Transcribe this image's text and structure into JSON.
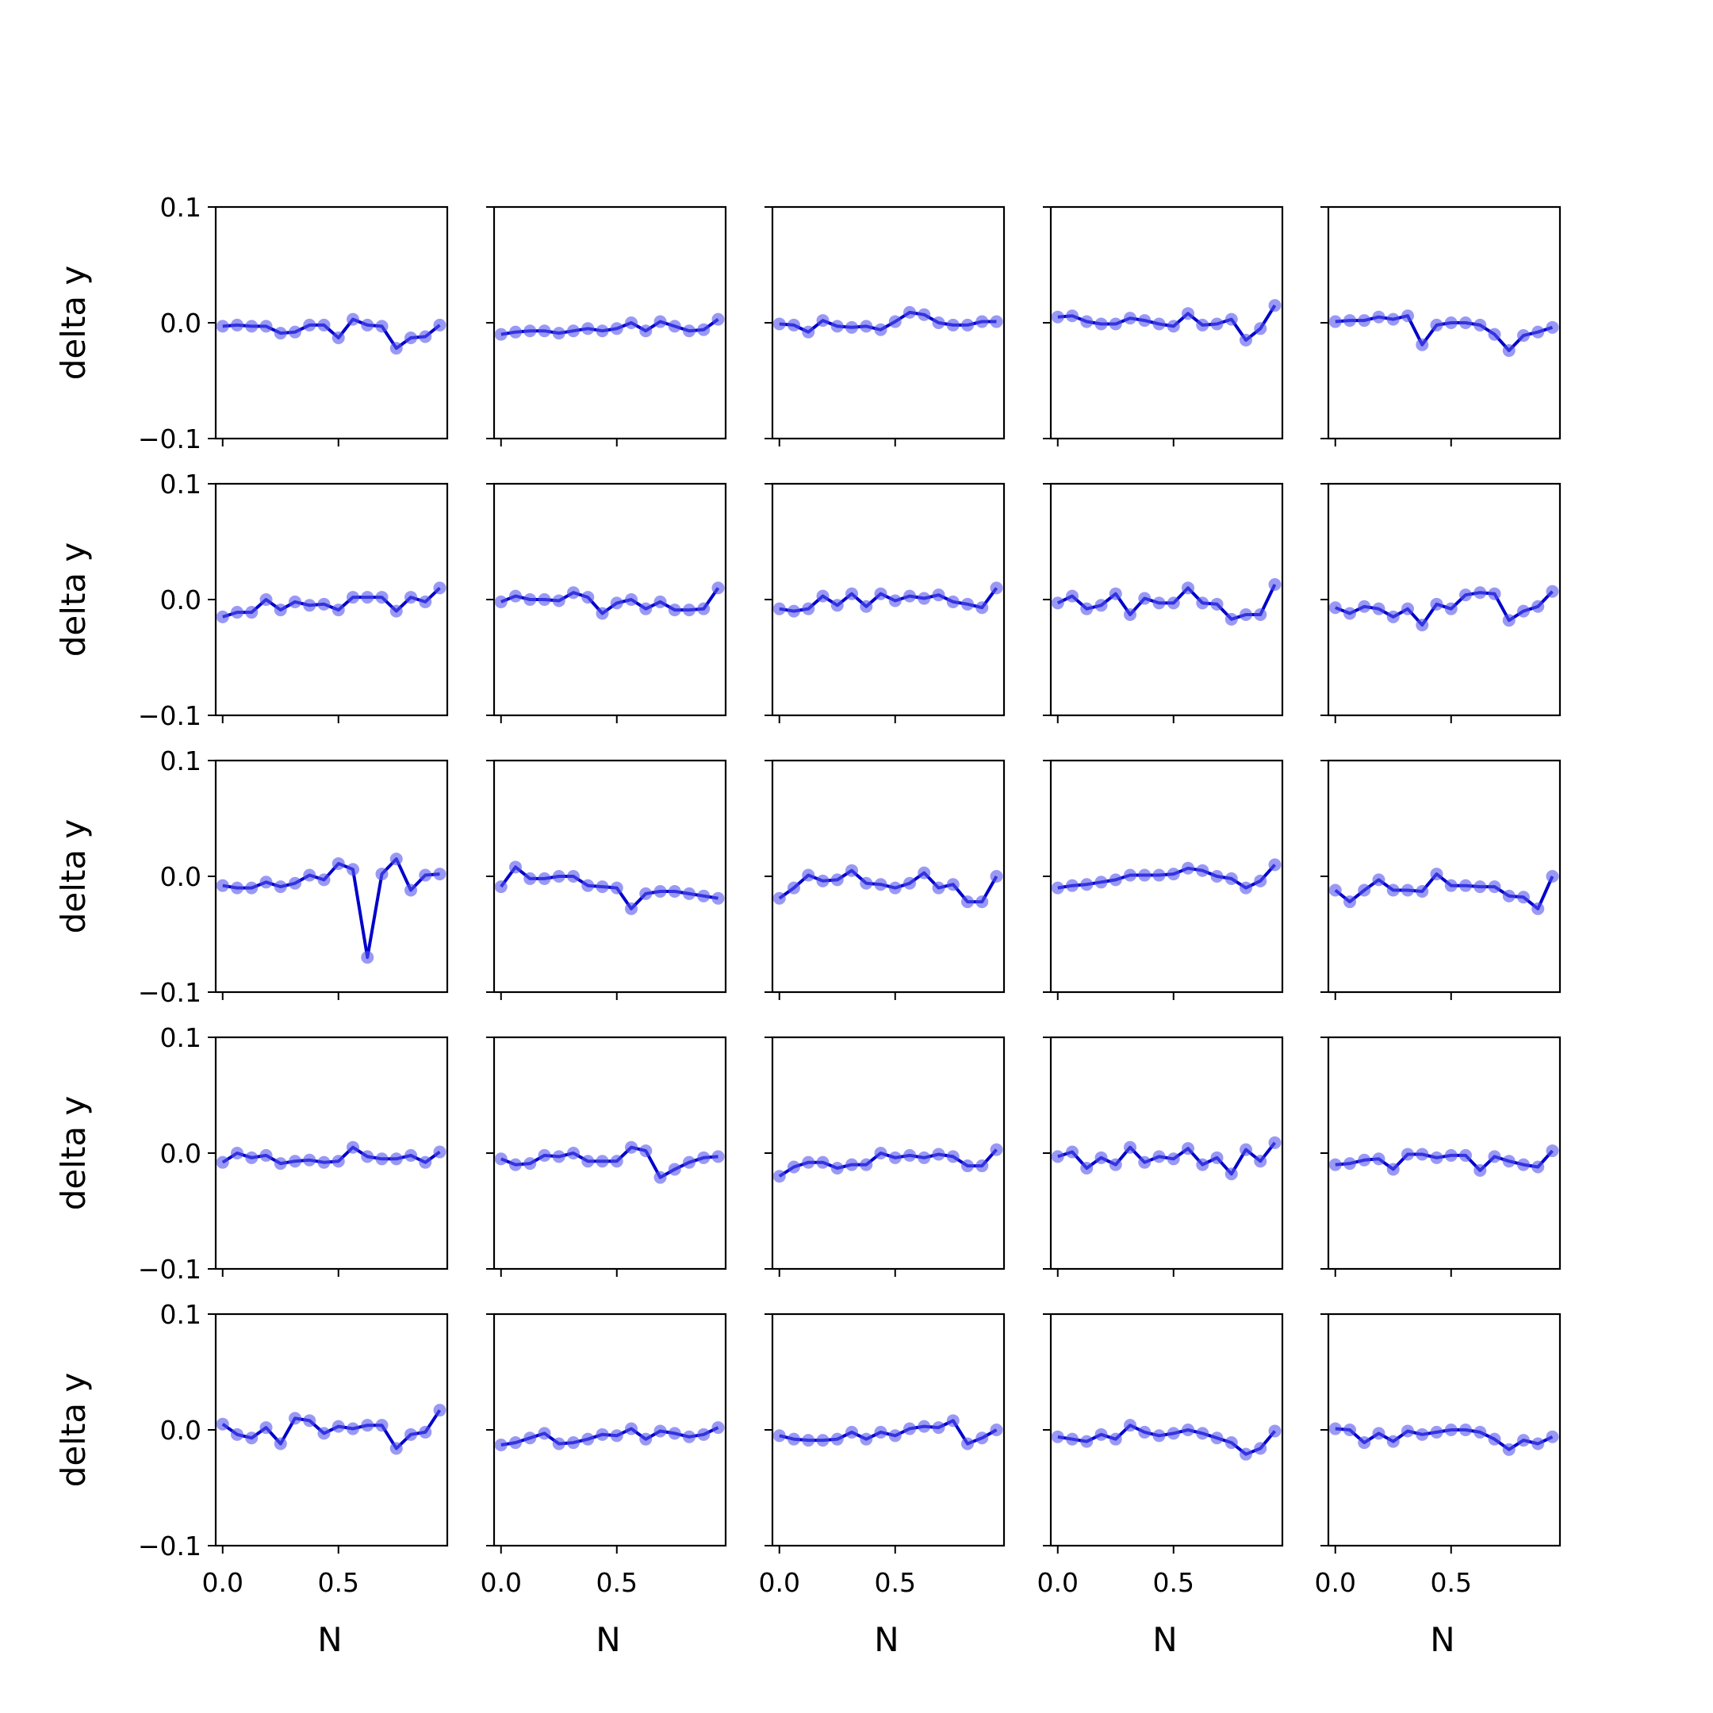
{
  "chart_data": {
    "type": "line",
    "layout": {
      "rows": 5,
      "cols": 5
    },
    "xlabel": "N",
    "ylabel": "delta y",
    "xlim": [
      -0.03,
      0.97
    ],
    "ylim": [
      -0.1,
      0.1
    ],
    "xticks": [
      0.0,
      0.5
    ],
    "xtick_labels": [
      "0.0",
      "0.5"
    ],
    "yticks": [
      0.1,
      0.0,
      -0.1
    ],
    "ytick_labels": [
      "0.1",
      "0.0",
      "−0.1"
    ],
    "x": [
      0.0,
      0.0625,
      0.125,
      0.1875,
      0.25,
      0.3125,
      0.375,
      0.4375,
      0.5,
      0.5625,
      0.625,
      0.6875,
      0.75,
      0.8125,
      0.875,
      0.9375
    ],
    "line_color": "#0000cc",
    "marker_color": "#5555ee",
    "panels": [
      {
        "values": [
          -0.003,
          -0.002,
          -0.003,
          -0.003,
          -0.009,
          -0.008,
          -0.002,
          -0.002,
          -0.013,
          0.003,
          -0.002,
          -0.003,
          -0.022,
          -0.013,
          -0.012,
          -0.002
        ]
      },
      {
        "values": [
          -0.01,
          -0.008,
          -0.007,
          -0.007,
          -0.009,
          -0.007,
          -0.005,
          -0.007,
          -0.005,
          0.0,
          -0.007,
          0.001,
          -0.003,
          -0.007,
          -0.006,
          0.003
        ]
      },
      {
        "values": [
          -0.001,
          -0.002,
          -0.008,
          0.002,
          -0.003,
          -0.004,
          -0.003,
          -0.006,
          0.001,
          0.009,
          0.007,
          0.0,
          -0.002,
          -0.002,
          0.001,
          0.001
        ]
      },
      {
        "values": [
          0.005,
          0.006,
          0.001,
          -0.001,
          -0.001,
          0.004,
          0.002,
          -0.001,
          -0.003,
          0.008,
          -0.002,
          -0.001,
          0.003,
          -0.015,
          -0.005,
          0.015
        ]
      },
      {
        "values": [
          0.001,
          0.002,
          0.002,
          0.005,
          0.003,
          0.006,
          -0.019,
          -0.002,
          0.0,
          0.0,
          -0.002,
          -0.01,
          -0.024,
          -0.011,
          -0.008,
          -0.004
        ]
      },
      {
        "values": [
          -0.015,
          -0.011,
          -0.011,
          0.0,
          -0.009,
          -0.002,
          -0.005,
          -0.004,
          -0.009,
          0.002,
          0.002,
          0.002,
          -0.01,
          0.002,
          -0.002,
          0.01
        ]
      },
      {
        "values": [
          -0.002,
          0.003,
          0.0,
          0.0,
          -0.001,
          0.006,
          0.002,
          -0.012,
          -0.003,
          0.0,
          -0.008,
          -0.002,
          -0.009,
          -0.009,
          -0.008,
          0.01
        ]
      },
      {
        "values": [
          -0.008,
          -0.01,
          -0.008,
          0.003,
          -0.005,
          0.005,
          -0.006,
          0.005,
          -0.001,
          0.003,
          0.001,
          0.004,
          -0.002,
          -0.004,
          -0.007,
          0.01
        ]
      },
      {
        "values": [
          -0.003,
          0.003,
          -0.008,
          -0.005,
          0.005,
          -0.013,
          0.001,
          -0.003,
          -0.003,
          0.01,
          -0.003,
          -0.004,
          -0.017,
          -0.013,
          -0.013,
          0.013
        ]
      },
      {
        "values": [
          -0.007,
          -0.012,
          -0.006,
          -0.008,
          -0.015,
          -0.008,
          -0.022,
          -0.004,
          -0.008,
          0.004,
          0.006,
          0.005,
          -0.018,
          -0.01,
          -0.006,
          0.007
        ]
      },
      {
        "values": [
          -0.008,
          -0.01,
          -0.01,
          -0.005,
          -0.009,
          -0.006,
          0.001,
          -0.003,
          0.011,
          0.006,
          -0.07,
          0.002,
          0.015,
          -0.012,
          0.001,
          0.002
        ]
      },
      {
        "values": [
          -0.009,
          0.008,
          -0.002,
          -0.002,
          0.0,
          0.0,
          -0.008,
          -0.009,
          -0.01,
          -0.028,
          -0.015,
          -0.013,
          -0.013,
          -0.015,
          -0.017,
          -0.019
        ]
      },
      {
        "values": [
          -0.019,
          -0.01,
          0.001,
          -0.004,
          -0.003,
          0.005,
          -0.006,
          -0.007,
          -0.01,
          -0.006,
          0.003,
          -0.01,
          -0.007,
          -0.022,
          -0.022,
          0.0
        ]
      },
      {
        "values": [
          -0.01,
          -0.008,
          -0.007,
          -0.005,
          -0.003,
          0.001,
          0.001,
          0.001,
          0.002,
          0.007,
          0.005,
          0.0,
          -0.002,
          -0.01,
          -0.004,
          0.01
        ]
      },
      {
        "values": [
          -0.012,
          -0.022,
          -0.012,
          -0.003,
          -0.012,
          -0.012,
          -0.013,
          0.002,
          -0.008,
          -0.008,
          -0.009,
          -0.009,
          -0.017,
          -0.018,
          -0.028,
          0.0
        ]
      },
      {
        "values": [
          -0.008,
          0.0,
          -0.004,
          -0.002,
          -0.009,
          -0.007,
          -0.006,
          -0.008,
          -0.007,
          0.005,
          -0.003,
          -0.005,
          -0.005,
          -0.002,
          -0.008,
          0.001
        ]
      },
      {
        "values": [
          -0.005,
          -0.01,
          -0.009,
          -0.002,
          -0.003,
          0.0,
          -0.007,
          -0.007,
          -0.007,
          0.005,
          0.002,
          -0.021,
          -0.014,
          -0.008,
          -0.004,
          -0.003
        ]
      },
      {
        "values": [
          -0.02,
          -0.012,
          -0.008,
          -0.008,
          -0.013,
          -0.01,
          -0.01,
          0.0,
          -0.004,
          -0.002,
          -0.004,
          -0.001,
          -0.003,
          -0.011,
          -0.011,
          0.003
        ]
      },
      {
        "values": [
          -0.003,
          0.001,
          -0.013,
          -0.004,
          -0.01,
          0.005,
          -0.008,
          -0.003,
          -0.005,
          0.004,
          -0.01,
          -0.004,
          -0.018,
          0.003,
          -0.007,
          0.009
        ]
      },
      {
        "values": [
          -0.01,
          -0.009,
          -0.006,
          -0.005,
          -0.014,
          -0.001,
          -0.001,
          -0.004,
          -0.002,
          -0.002,
          -0.015,
          -0.003,
          -0.007,
          -0.01,
          -0.012,
          0.002
        ]
      },
      {
        "values": [
          0.005,
          -0.004,
          -0.007,
          0.002,
          -0.012,
          0.01,
          0.008,
          -0.003,
          0.003,
          0.001,
          0.004,
          0.004,
          -0.016,
          -0.004,
          -0.002,
          0.017
        ]
      },
      {
        "values": [
          -0.013,
          -0.011,
          -0.007,
          -0.003,
          -0.012,
          -0.011,
          -0.008,
          -0.004,
          -0.005,
          0.001,
          -0.008,
          -0.001,
          -0.003,
          -0.006,
          -0.004,
          0.002
        ]
      },
      {
        "values": [
          -0.005,
          -0.008,
          -0.009,
          -0.009,
          -0.008,
          -0.002,
          -0.008,
          -0.002,
          -0.005,
          0.001,
          0.003,
          0.002,
          0.008,
          -0.012,
          -0.007,
          0.0
        ]
      },
      {
        "values": [
          -0.006,
          -0.008,
          -0.01,
          -0.004,
          -0.008,
          0.004,
          -0.002,
          -0.005,
          -0.003,
          0.0,
          -0.003,
          -0.007,
          -0.011,
          -0.021,
          -0.016,
          -0.001
        ]
      },
      {
        "values": [
          0.001,
          0.0,
          -0.011,
          -0.003,
          -0.01,
          -0.001,
          -0.004,
          -0.002,
          0.0,
          0.0,
          -0.002,
          -0.008,
          -0.017,
          -0.009,
          -0.012,
          -0.006
        ]
      }
    ]
  }
}
